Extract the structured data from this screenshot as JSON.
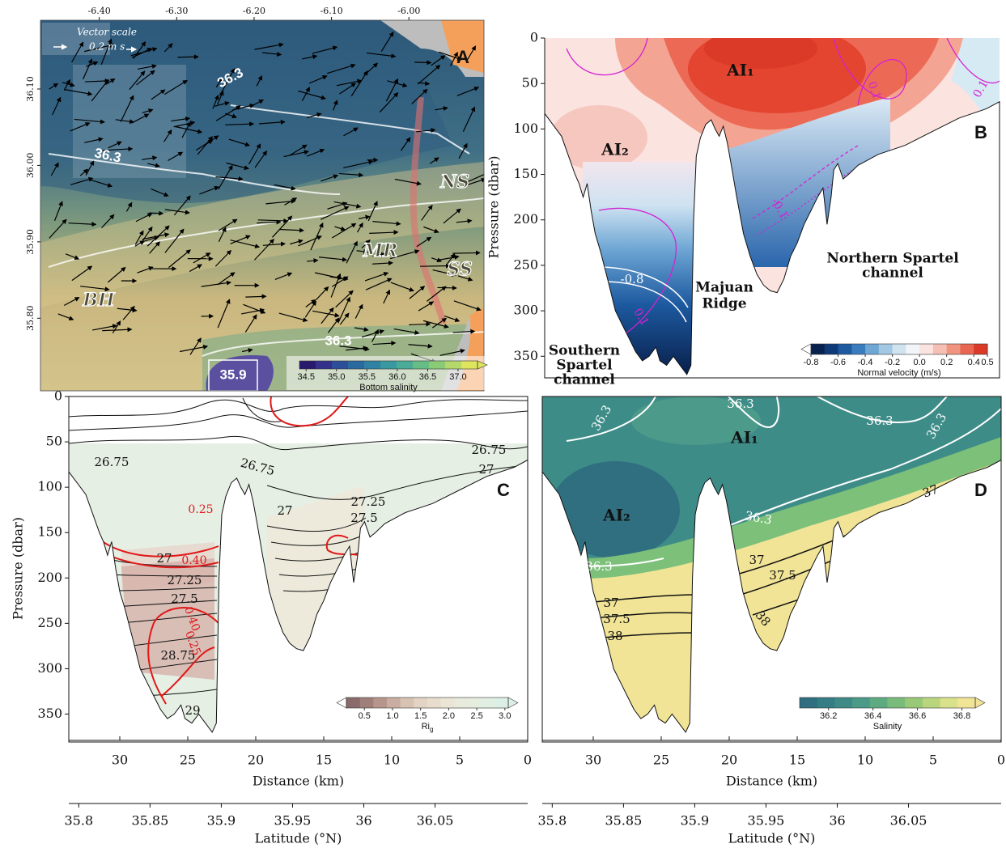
{
  "chart_data": [
    {
      "type": "map",
      "xlim": [
        -6.476,
        -5.903
      ],
      "ylim": [
        35.705,
        36.19
      ],
      "xticks": [
        {
          "value": -6.4,
          "label": "-6.40"
        },
        {
          "value": -6.3,
          "label": "-6.30"
        },
        {
          "value": -6.2,
          "label": "-6.20"
        },
        {
          "value": -6.1,
          "label": "-6.10"
        },
        {
          "value": -6.0,
          "label": "-6.00"
        }
      ],
      "yticks": [
        {
          "value": 35.8,
          "label": "35.80"
        },
        {
          "value": 35.9,
          "label": "35.90"
        },
        {
          "value": 36.0,
          "label": "36.00"
        },
        {
          "value": 36.1,
          "label": "36.10"
        }
      ],
      "panel_label": "A",
      "annotations": [
        "Vector scale",
        "0.2 m s",
        "NS",
        "MR",
        "SS",
        "BH"
      ],
      "contour_labels": [
        "36.3",
        "36.3",
        "36.3",
        "35.9"
      ],
      "colorbar": {
        "label": "Bottom salinity",
        "lim": [
          34.39,
          37.32
        ],
        "ticks": [
          34.5,
          {
            "value": 35,
            "label": "35.0"
          },
          35.5,
          {
            "value": 36,
            "label": "36.0"
          },
          36.5,
          {
            "value": 37,
            "label": "37.0"
          }
        ],
        "colors": [
          "#2a1a6e",
          "#33318a",
          "#2d4f9a",
          "#2a6aa0",
          "#2f82a2",
          "#3a98a0",
          "#4aab96",
          "#66bd86",
          "#8acb76",
          "#b4d86a",
          "#dfe45e"
        ]
      }
    },
    {
      "type": "section",
      "xlim": [
        33.75,
        0
      ],
      "ylim": [
        372,
        0
      ],
      "yticks": [
        0,
        50,
        100,
        150,
        200,
        250,
        300,
        350
      ],
      "ylabel": "Pressure (dbar)",
      "panel_label": "B",
      "annotations": [
        "AI₁",
        "AI₂",
        "Majuan",
        "Ridge",
        "Northern Spartel",
        "channel",
        "Southern",
        "Spartel",
        "channel"
      ],
      "contour_labels": [
        "-0.8",
        "0.1",
        "0.1",
        "0.1",
        "-0.1"
      ],
      "colorbar": {
        "label": "Normal velocity (m/s)",
        "lim": [
          -0.8,
          0.5
        ],
        "ticks": [
          -0.8,
          -0.6,
          -0.4,
          -0.2,
          {
            "value": 0,
            "label": "0.0"
          },
          0.2,
          0.4,
          0.5
        ],
        "colors": [
          "#08214f",
          "#0f3a78",
          "#1d5aa0",
          "#3a7cbd",
          "#6ea6d4",
          "#a2c8e4",
          "#d0e4f0",
          "#f1f5f9",
          "#fbe3e0",
          "#f6bfb3",
          "#f09480",
          "#e86652",
          "#dc3a28"
        ]
      }
    },
    {
      "type": "section",
      "xlim": [
        33.75,
        0
      ],
      "ylim": [
        379,
        0
      ],
      "xticks": [
        30,
        25,
        20,
        15,
        10,
        5,
        0
      ],
      "yticks": [
        0,
        50,
        100,
        150,
        200,
        250,
        300,
        350
      ],
      "xlabel": "Distance (km)",
      "ylabel": "Pressure (dbar)",
      "x2lim": [
        35.793,
        36.115
      ],
      "x2ticks": [
        35.8,
        35.85,
        35.9,
        35.95,
        36,
        36.05
      ],
      "x2label": "Latitude (°N)",
      "panel_label": "C",
      "contour_labels": [
        "26.75",
        "26.75",
        "26.75",
        "27",
        "27",
        "27",
        "27.25",
        "27.25",
        "27.5",
        "27.5",
        "28.75",
        "29",
        "0.25",
        "0.25",
        "0.40",
        "0.40"
      ],
      "colorbar": {
        "label": "Ri",
        "label_sub": "g",
        "lim": [
          0.18,
          3.06
        ],
        "ticks": [
          0.5,
          {
            "value": 1,
            "label": "1.0"
          },
          1.5,
          {
            "value": 2,
            "label": "2.0"
          },
          2.5,
          {
            "value": 3,
            "label": "3.0"
          }
        ],
        "colors": [
          "#8a6a6a",
          "#a07f7a",
          "#b6968c",
          "#c9ada0",
          "#d8c3b3",
          "#e2d3c4",
          "#e8ddcd",
          "#ebe5d5",
          "#e8eadb",
          "#e5eddf",
          "#e1efe3",
          "#dcefe7"
        ]
      }
    },
    {
      "type": "section",
      "xlim": [
        33.75,
        0
      ],
      "ylim": [
        379,
        0
      ],
      "xticks": [
        30,
        25,
        20,
        15,
        10,
        5,
        0
      ],
      "xlabel": "Distance (km)",
      "x2lim": [
        35.793,
        36.115
      ],
      "x2ticks": [
        35.8,
        35.85,
        35.9,
        35.95,
        36,
        36.05
      ],
      "x2label": "Latitude (°N)",
      "panel_label": "D",
      "annotations": [
        "AI₁",
        "AI₂"
      ],
      "contour_labels": [
        "36.3",
        "36.3",
        "36.3",
        "36.3",
        "36.3",
        "36.3",
        "37",
        "37",
        "37",
        "37.5",
        "37.5",
        "38",
        "38"
      ],
      "colorbar": {
        "label": "Salinity",
        "lim": [
          36.07,
          36.86
        ],
        "ticks": [
          36.2,
          36.4,
          36.6,
          36.8
        ],
        "colors": [
          "#2f6f80",
          "#357d84",
          "#3d8a86",
          "#4a9a87",
          "#5eab82",
          "#79bb7a",
          "#98c977",
          "#b9d67e",
          "#d9e28a",
          "#f1e496"
        ]
      }
    }
  ],
  "bathymetry": {
    "distance": [
      33.75,
      32.5,
      31.5,
      31.2,
      30.9,
      30.6,
      30.3,
      30,
      29.6,
      29,
      28.5,
      28,
      27.5,
      27,
      26.5,
      26,
      25.5,
      25.2,
      24.7,
      24.2,
      23.6,
      23.2,
      22.9,
      22.7,
      22.5,
      22.2,
      21.8,
      21.4,
      21.1,
      20.8,
      20.5,
      20.2,
      19.9,
      19.5,
      19,
      18.5,
      18,
      17.5,
      17,
      16.5,
      16,
      15.5,
      15,
      14.5,
      14,
      13.5,
      13.1,
      12.8,
      12.5,
      12.3,
      12,
      11.6,
      11.2,
      10.5,
      9,
      7,
      5,
      3,
      1,
      0
    ],
    "pressure": [
      83,
      108,
      150,
      160,
      175,
      160,
      190,
      215,
      235,
      270,
      300,
      315,
      330,
      345,
      355,
      350,
      340,
      355,
      360,
      350,
      362,
      370,
      360,
      200,
      130,
      110,
      95,
      90,
      100,
      108,
      97,
      115,
      140,
      175,
      215,
      240,
      260,
      272,
      278,
      280,
      265,
      240,
      225,
      205,
      190,
      175,
      165,
      205,
      175,
      145,
      138,
      155,
      150,
      140,
      128,
      118,
      103,
      88,
      78,
      70
    ]
  }
}
